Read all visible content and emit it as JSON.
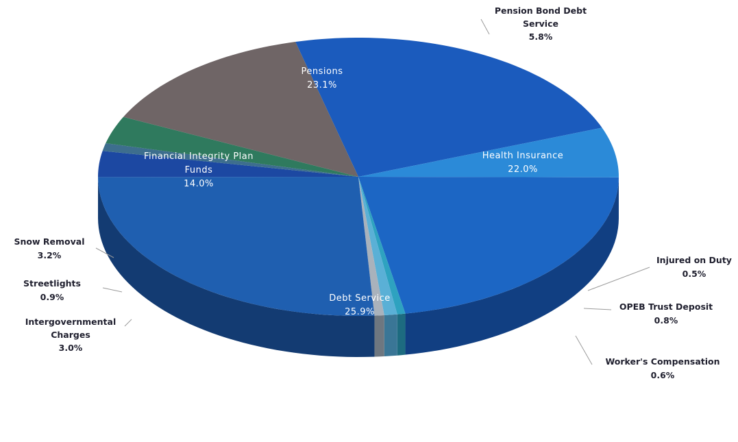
{
  "chart_data": {
    "type": "pie",
    "title": "",
    "slices": [
      {
        "label": [
          "Pensions"
        ],
        "value_label": "23.1%",
        "value": 23.1,
        "color": "#1b5bbd",
        "side_color": "#0f3c80",
        "label_style": "inside"
      },
      {
        "label": [
          "Pension Bond Debt",
          "Service"
        ],
        "value_label": "5.8%",
        "value": 5.8,
        "color": "#2b8ad8",
        "side_color": "#1a5a96",
        "label_style": "outside"
      },
      {
        "label": [
          "Health Insurance"
        ],
        "value_label": "22.0%",
        "value": 22.0,
        "color": "#1c66c4",
        "side_color": "#113f82",
        "label_style": "inside"
      },
      {
        "label": [
          "Injured on Duty"
        ],
        "value_label": "0.5%",
        "value": 0.5,
        "color": "#2ea2c0",
        "side_color": "#1d6b80",
        "label_style": "outside"
      },
      {
        "label": [
          "OPEB Trust Deposit"
        ],
        "value_label": "0.8%",
        "value": 0.8,
        "color": "#5ab0d6",
        "side_color": "#3a7696",
        "label_style": "outside"
      },
      {
        "label": [
          "Worker's Compensation"
        ],
        "value_label": "0.6%",
        "value": 0.6,
        "color": "#a9b2bc",
        "side_color": "#6e7780",
        "label_style": "outside"
      },
      {
        "label": [
          "Debt Service"
        ],
        "value_label": "25.9%",
        "value": 25.9,
        "color": "#1f5fb0",
        "side_color": "#133b72",
        "label_style": "inside"
      },
      {
        "label": [
          "Intergovernmental",
          "Charges"
        ],
        "value_label": "3.0%",
        "value": 3.0,
        "color": "#1c48a2",
        "side_color": "#122f6c",
        "label_style": "outside"
      },
      {
        "label": [
          "Streetlights"
        ],
        "value_label": "0.9%",
        "value": 0.9,
        "color": "#3d6e8e",
        "side_color": "#27485e",
        "label_style": "outside"
      },
      {
        "label": [
          "Snow Removal"
        ],
        "value_label": "3.2%",
        "value": 3.2,
        "color": "#2f7a5e",
        "side_color": "#1d4e3c",
        "label_style": "outside"
      },
      {
        "label": [
          "Financial Integrity Plan",
          "Funds"
        ],
        "value_label": "14.0%",
        "value": 14.0,
        "color": "#6f6566",
        "side_color": "#463f40",
        "label_style": "inside"
      }
    ]
  }
}
